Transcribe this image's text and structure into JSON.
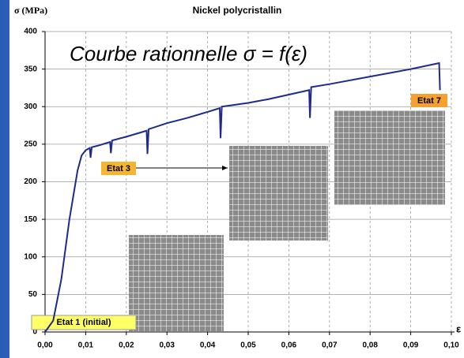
{
  "chart_data": {
    "type": "line",
    "title": "Nickel polycristallin",
    "ylabel": "σ (MPa)",
    "xlabel": "ε",
    "annotations": {
      "main": "Courbe rationnelle σ = f(ε)",
      "state1": "Etat 1 (initial)",
      "state3": "Etat 3",
      "state7": "Etat 7"
    },
    "x": [
      0,
      0.002,
      0.004,
      0.006,
      0.008,
      0.009,
      0.01,
      0.011,
      0.0112,
      0.0115,
      0.013,
      0.016,
      0.0162,
      0.0165,
      0.02,
      0.025,
      0.0252,
      0.0255,
      0.03,
      0.035,
      0.04,
      0.043,
      0.0432,
      0.0435,
      0.05,
      0.055,
      0.06,
      0.065,
      0.0652,
      0.0655,
      0.07,
      0.08,
      0.09,
      0.097,
      0.0972
    ],
    "series": [
      {
        "color": "#1f2a8c",
        "values": [
          0,
          15,
          70,
          150,
          215,
          235,
          242,
          245,
          232,
          246,
          248,
          253,
          238,
          255,
          260,
          268,
          237,
          270,
          278,
          285,
          293,
          298,
          258,
          300,
          305,
          310,
          316,
          322,
          285,
          326,
          330,
          340,
          350,
          358,
          322
        ]
      }
    ],
    "xlim": [
      0,
      0.1
    ],
    "ylim": [
      0,
      400
    ],
    "xticks": [
      {
        "value": 0,
        "label": "0,00"
      },
      {
        "value": 0.01,
        "label": "0,01"
      },
      {
        "value": 0.02,
        "label": "0,02"
      },
      {
        "value": 0.03,
        "label": "0,03"
      },
      {
        "value": 0.04,
        "label": "0,04"
      },
      {
        "value": 0.05,
        "label": "0,05"
      },
      {
        "value": 0.06,
        "label": "0,06"
      },
      {
        "value": 0.07,
        "label": "0,07"
      },
      {
        "value": 0.08,
        "label": "0,08"
      },
      {
        "value": 0.09,
        "label": "0,09"
      },
      {
        "value": 0.1,
        "label": "0,10"
      }
    ],
    "yticks": [
      0,
      50,
      100,
      150,
      200,
      250,
      300,
      350,
      400
    ],
    "grid": true
  }
}
